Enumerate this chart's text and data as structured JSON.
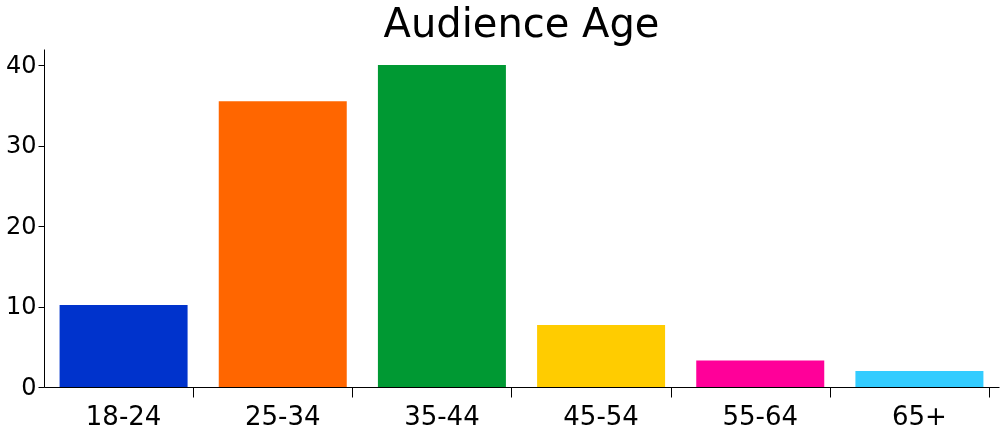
{
  "chart_data": {
    "type": "bar",
    "title": "Audience Age",
    "categories": [
      "18-24",
      "25-34",
      "35-44",
      "45-54",
      "55-64",
      "65+"
    ],
    "values": [
      10.2,
      35.5,
      40,
      7.7,
      3.3,
      2.0
    ],
    "colors": [
      "#0033cc",
      "#ff6600",
      "#009933",
      "#ffcc00",
      "#ff0099",
      "#33ccff"
    ],
    "ylim": [
      0,
      42
    ],
    "yticks": [
      0,
      10,
      20,
      30,
      40
    ],
    "grid": false
  }
}
